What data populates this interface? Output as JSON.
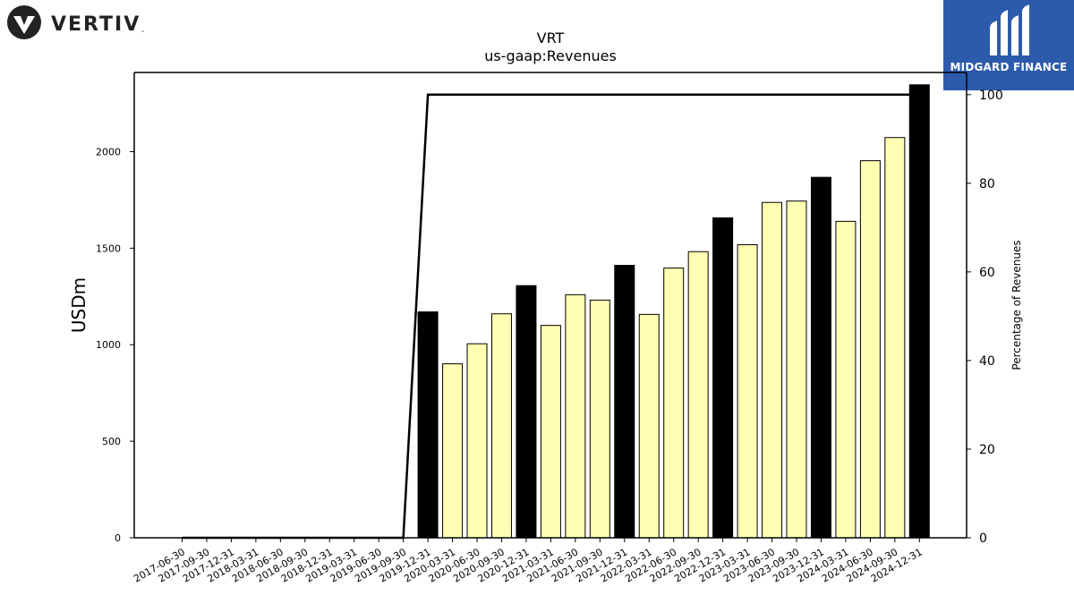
{
  "brand": {
    "logo_text": "VERTIV",
    "logo_tm": "™"
  },
  "badge": {
    "text": "MIDGARD FINANCE",
    "color": "#2d5bab"
  },
  "colors": {
    "highlight": "#000000",
    "regular": "#ffffb3",
    "line": "#000000"
  },
  "chart_data": {
    "type": "bar",
    "title": "VRT",
    "subtitle": "us-gaap:Revenues",
    "ylabel": "USDm",
    "y2label": "Percentage of Revenues",
    "ylim": [
      0,
      2410
    ],
    "y2lim": [
      0,
      105
    ],
    "yticks": [
      0,
      500,
      1000,
      1500,
      2000
    ],
    "y2ticks": [
      0,
      20,
      40,
      60,
      80,
      100
    ],
    "categories": [
      "2017-06-30",
      "2017-09-30",
      "2017-12-31",
      "2018-03-31",
      "2018-06-30",
      "2018-09-30",
      "2018-12-31",
      "2019-03-31",
      "2019-06-30",
      "2019-09-30",
      "2019-12-31",
      "2020-03-31",
      "2020-06-30",
      "2020-09-30",
      "2020-12-31",
      "2021-03-31",
      "2021-06-30",
      "2021-09-30",
      "2021-12-31",
      "2022-03-31",
      "2022-06-30",
      "2022-09-30",
      "2022-12-31",
      "2023-03-31",
      "2023-06-30",
      "2023-09-30",
      "2023-12-31",
      "2024-03-31",
      "2024-06-30",
      "2024-09-30",
      "2024-12-31"
    ],
    "series": [
      {
        "values": [
          0,
          0,
          0,
          0,
          0,
          0,
          0,
          0,
          0,
          0,
          1170,
          901,
          1005,
          1160,
          1306,
          1100,
          1259,
          1231,
          1411,
          1157,
          1397,
          1482,
          1657,
          1518,
          1737,
          1744,
          1867,
          1639,
          1953,
          2073,
          2346
        ],
        "highlight": [
          false,
          false,
          false,
          false,
          false,
          false,
          false,
          false,
          false,
          false,
          true,
          false,
          false,
          false,
          true,
          false,
          false,
          false,
          true,
          false,
          false,
          false,
          true,
          false,
          false,
          false,
          true,
          false,
          false,
          false,
          true
        ]
      },
      {
        "axis": "right",
        "type": "line",
        "values": [
          0,
          0,
          0,
          0,
          0,
          0,
          0,
          0,
          0,
          0,
          100,
          100,
          100,
          100,
          100,
          100,
          100,
          100,
          100,
          100,
          100,
          100,
          100,
          100,
          100,
          100,
          100,
          100,
          100,
          100,
          100
        ]
      }
    ],
    "grid": false,
    "legend": "none"
  }
}
